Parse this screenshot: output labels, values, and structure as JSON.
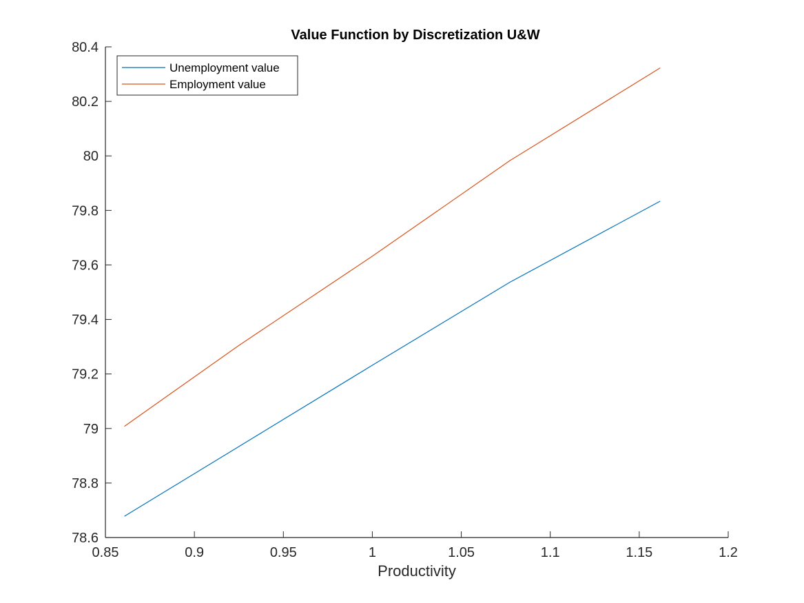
{
  "chart_data": {
    "type": "line",
    "title": "Value Function by Discretization U&W",
    "xlabel": "Productivity",
    "ylabel": "",
    "xlim": [
      0.85,
      1.2
    ],
    "ylim": [
      78.6,
      80.4
    ],
    "x_ticks": [
      "0.85",
      "0.9",
      "0.95",
      "1",
      "1.05",
      "1.1",
      "1.15",
      "1.2"
    ],
    "y_ticks": [
      "78.6",
      "78.8",
      "79",
      "79.2",
      "79.4",
      "79.6",
      "79.8",
      "80",
      "80.2",
      "80.4"
    ],
    "grid": false,
    "legend_position": "top-left",
    "x": [
      0.8607,
      0.9253,
      1.0,
      1.0774,
      1.1618
    ],
    "series": [
      {
        "name": "Unemployment value",
        "color": "#0072BD",
        "values": [
          78.678,
          78.935,
          79.232,
          79.537,
          79.834
        ]
      },
      {
        "name": "Employment value",
        "color": "#D95319",
        "values": [
          79.008,
          79.306,
          79.632,
          79.983,
          80.323
        ]
      }
    ]
  }
}
